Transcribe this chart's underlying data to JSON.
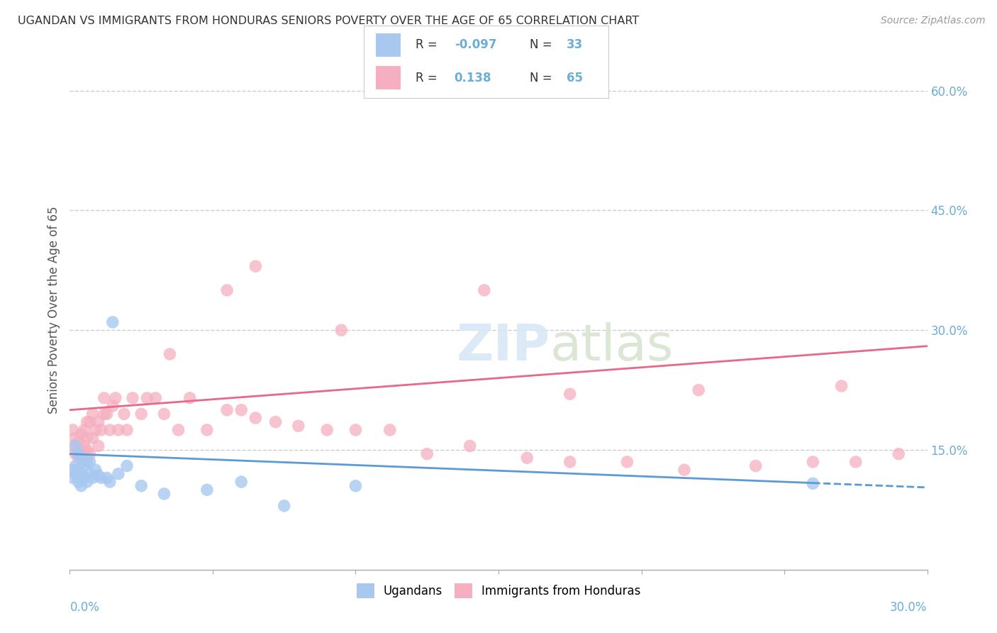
{
  "title": "UGANDAN VS IMMIGRANTS FROM HONDURAS SENIORS POVERTY OVER THE AGE OF 65 CORRELATION CHART",
  "source": "Source: ZipAtlas.com",
  "ylabel": "Seniors Poverty Over the Age of 65",
  "legend_label1": "Ugandans",
  "legend_label2": "Immigrants from Honduras",
  "color_ugandan": "#a8c8f0",
  "color_honduras": "#f5afc0",
  "color_line_ugandan": "#5b9bd5",
  "color_line_honduras": "#e8688a",
  "color_axis_blue": "#6baed6",
  "background_color": "#ffffff",
  "ugandan_x": [
    0.001,
    0.001,
    0.002,
    0.002,
    0.002,
    0.003,
    0.003,
    0.003,
    0.004,
    0.004,
    0.004,
    0.005,
    0.005,
    0.006,
    0.006,
    0.007,
    0.007,
    0.008,
    0.009,
    0.01,
    0.011,
    0.013,
    0.014,
    0.015,
    0.017,
    0.02,
    0.025,
    0.033,
    0.048,
    0.06,
    0.075,
    0.1,
    0.26
  ],
  "ugandan_y": [
    0.125,
    0.115,
    0.12,
    0.13,
    0.155,
    0.11,
    0.125,
    0.145,
    0.105,
    0.12,
    0.14,
    0.115,
    0.13,
    0.11,
    0.135,
    0.12,
    0.135,
    0.115,
    0.125,
    0.118,
    0.115,
    0.115,
    0.11,
    0.31,
    0.12,
    0.13,
    0.105,
    0.095,
    0.1,
    0.11,
    0.08,
    0.105,
    0.108
  ],
  "honduras_x": [
    0.001,
    0.001,
    0.002,
    0.002,
    0.003,
    0.003,
    0.004,
    0.004,
    0.005,
    0.005,
    0.005,
    0.006,
    0.006,
    0.006,
    0.007,
    0.007,
    0.008,
    0.008,
    0.009,
    0.01,
    0.01,
    0.011,
    0.012,
    0.012,
    0.013,
    0.014,
    0.015,
    0.016,
    0.017,
    0.019,
    0.02,
    0.022,
    0.025,
    0.027,
    0.03,
    0.033,
    0.038,
    0.042,
    0.048,
    0.055,
    0.06,
    0.065,
    0.072,
    0.08,
    0.09,
    0.1,
    0.112,
    0.125,
    0.14,
    0.16,
    0.175,
    0.195,
    0.215,
    0.24,
    0.26,
    0.275,
    0.29,
    0.035,
    0.055,
    0.065,
    0.095,
    0.145,
    0.175,
    0.22,
    0.27
  ],
  "honduras_y": [
    0.155,
    0.175,
    0.145,
    0.165,
    0.14,
    0.16,
    0.15,
    0.17,
    0.145,
    0.155,
    0.175,
    0.15,
    0.165,
    0.185,
    0.145,
    0.185,
    0.165,
    0.195,
    0.175,
    0.155,
    0.185,
    0.175,
    0.195,
    0.215,
    0.195,
    0.175,
    0.205,
    0.215,
    0.175,
    0.195,
    0.175,
    0.215,
    0.195,
    0.215,
    0.215,
    0.195,
    0.175,
    0.215,
    0.175,
    0.2,
    0.2,
    0.19,
    0.185,
    0.18,
    0.175,
    0.175,
    0.175,
    0.145,
    0.155,
    0.14,
    0.135,
    0.135,
    0.125,
    0.13,
    0.135,
    0.135,
    0.145,
    0.27,
    0.35,
    0.38,
    0.3,
    0.35,
    0.22,
    0.225,
    0.23
  ],
  "ytick_vals": [
    0.15,
    0.3,
    0.45,
    0.6
  ],
  "right_labels": [
    "15.0%",
    "30.0%",
    "45.0%",
    "60.0%"
  ],
  "x_min": 0.0,
  "x_max": 0.3,
  "y_min": 0.0,
  "y_max": 0.65
}
